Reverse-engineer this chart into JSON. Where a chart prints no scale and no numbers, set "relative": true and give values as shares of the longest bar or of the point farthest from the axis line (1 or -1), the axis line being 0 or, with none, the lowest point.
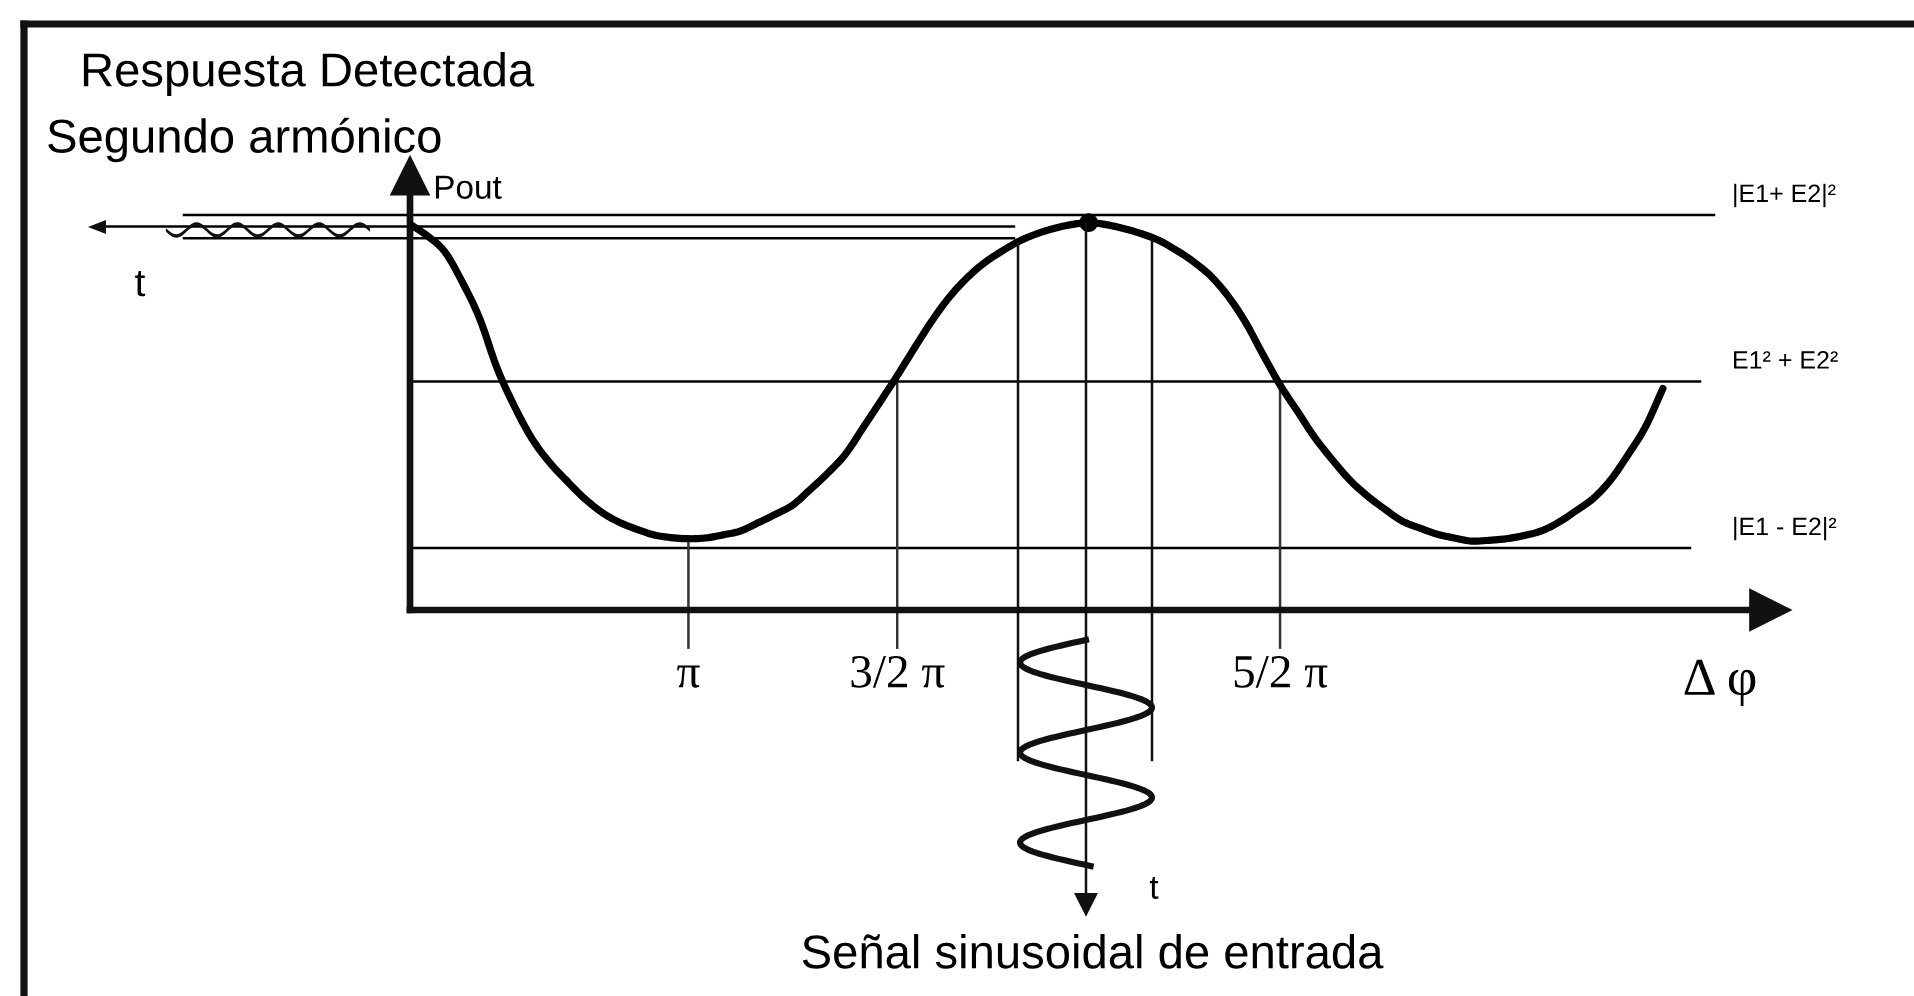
{
  "chart_data": {
    "type": "line",
    "title": "Respuesta Detectada",
    "subtitle": "Segundo armónico",
    "xlabel": "Δ φ",
    "ylabel": "Pout",
    "relative": true,
    "tick_labels": "x",
    "categories": [
      null,
      null,
      null,
      null,
      null,
      null,
      null,
      null,
      null,
      null,
      null,
      null,
      null,
      null,
      null,
      null,
      "π",
      null,
      null,
      null,
      null,
      null,
      null,
      null,
      null,
      null,
      null,
      null,
      "3/2 π",
      null,
      null,
      null,
      null,
      null,
      null,
      null,
      null,
      null,
      null,
      null,
      null,
      null,
      null,
      null,
      null,
      null,
      null,
      null,
      null,
      null,
      "5/2 π",
      null,
      null,
      null,
      null,
      null,
      null,
      null,
      null,
      null,
      null,
      null,
      null,
      null,
      null,
      null,
      null,
      null,
      null,
      null,
      null,
      null,
      null
    ],
    "series": [
      {
        "color": "#000000",
        "values": [
          0.996,
          0.966,
          0.925,
          0.847,
          0.753,
          0.625,
          0.526,
          0.443,
          0.382,
          0.334,
          0.289,
          0.253,
          0.227,
          0.209,
          0.194,
          0.187,
          0.184,
          0.186,
          0.194,
          0.204,
          0.225,
          0.247,
          0.271,
          0.311,
          0.353,
          0.401,
          0.468,
          0.536,
          0.605,
          0.677,
          0.747,
          0.808,
          0.857,
          0.896,
          0.926,
          0.952,
          0.971,
          0.985,
          0.995,
          1.0,
          0.995,
          0.985,
          0.972,
          0.955,
          0.93,
          0.9,
          0.863,
          0.811,
          0.744,
          0.661,
          0.581,
          0.513,
          0.445,
          0.388,
          0.336,
          0.295,
          0.261,
          0.23,
          0.212,
          0.196,
          0.186,
          0.178,
          0.18,
          0.184,
          0.192,
          0.204,
          0.226,
          0.256,
          0.288,
          0.336,
          0.401,
          0.473,
          0.572
        ]
      },
      {
        "type": "scatter",
        "color": "#000000",
        "values": [
          null,
          null,
          null,
          null,
          null,
          null,
          null,
          null,
          null,
          null,
          null,
          null,
          null,
          null,
          null,
          null,
          null,
          null,
          null,
          null,
          null,
          null,
          null,
          null,
          null,
          null,
          null,
          null,
          null,
          null,
          null,
          null,
          null,
          null,
          null,
          null,
          null,
          null,
          null,
          1.0,
          null,
          null,
          null,
          null,
          null,
          null,
          null,
          null,
          null,
          null,
          null,
          null,
          null,
          null,
          null,
          null,
          null,
          null,
          null,
          null,
          null,
          null,
          null,
          null,
          null,
          null,
          null,
          null,
          null,
          null,
          null,
          null,
          null
        ]
      }
    ],
    "ref_lines": [
      {
        "axis": "y",
        "value": 1.02,
        "label": "|E1+ E2|²",
        "color": "#000000"
      },
      {
        "axis": "y",
        "value": 0.59,
        "label": "E1² + E2²",
        "color": "#000000"
      },
      {
        "axis": "y",
        "value": 0.16,
        "label": "|E1 - E2|²",
        "color": "#000000"
      },
      {
        "axis": "y",
        "value": 0.99,
        "color": "#000000"
      },
      {
        "axis": "y",
        "value": 0.96,
        "color": "#000000"
      }
    ],
    "annotations": [
      "t",
      "Señal sinusoidal de entrada",
      "t"
    ]
  }
}
